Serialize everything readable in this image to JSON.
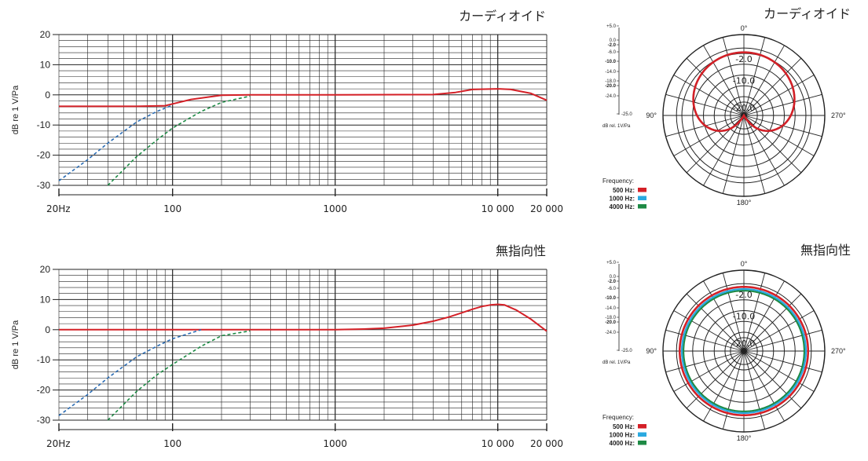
{
  "colors": {
    "series500": "#d42027",
    "series1000": "#2aa9e0",
    "series4000": "#1e8a45",
    "dashBlue": "#2b6cb3",
    "grid": "#222222"
  },
  "chart_data": [
    {
      "type": "line",
      "title": "カーディオイド",
      "ylabel": "dB re 1 V/Pa",
      "ylim": [
        -30,
        20
      ],
      "xlim": [
        20,
        20000
      ],
      "xscale": "log",
      "yticks": [
        "20",
        "10",
        "0",
        "-10",
        "-20",
        "-30"
      ],
      "xticks": [
        "20Hz",
        "100",
        "1000",
        "10 000",
        "20 000"
      ],
      "series": [
        {
          "style": "solid",
          "color": "#d42027",
          "x": [
            20,
            60,
            90,
            100,
            130,
            200,
            300,
            1000,
            4000,
            5500,
            7000,
            10000,
            12000,
            16000,
            20000
          ],
          "y": [
            -3.8,
            -3.8,
            -3.6,
            -3.0,
            -1.5,
            -0.1,
            0,
            0,
            0.1,
            0.8,
            1.8,
            2.0,
            1.8,
            0.5,
            -1.8
          ]
        },
        {
          "style": "dashed",
          "color": "#2b6cb3",
          "x": [
            20,
            30,
            40,
            60,
            80,
            100
          ],
          "y": [
            -28.5,
            -21.5,
            -16,
            -9,
            -5.5,
            -3.4
          ]
        },
        {
          "style": "dashed",
          "color": "#1e8a45",
          "x": [
            40,
            60,
            80,
            100,
            150,
            200,
            300
          ],
          "y": [
            -30,
            -20.5,
            -15,
            -11,
            -5.5,
            -2.5,
            -0.4
          ]
        }
      ]
    },
    {
      "type": "line",
      "title": "無指向性",
      "ylabel": "dB re 1 V/Pa",
      "ylim": [
        -30,
        20
      ],
      "xlim": [
        20,
        20000
      ],
      "xscale": "log",
      "yticks": [
        "20",
        "10",
        "0",
        "-10",
        "-20",
        "-30"
      ],
      "xticks": [
        "20Hz",
        "100",
        "1000",
        "10 000",
        "20 000"
      ],
      "series": [
        {
          "style": "solid",
          "color": "#d42027",
          "x": [
            20,
            100,
            1000,
            1500,
            2000,
            3000,
            4000,
            5000,
            6000,
            7000,
            8000,
            9000,
            10000,
            11000,
            13000,
            16000,
            20000
          ],
          "y": [
            0,
            0,
            0,
            0.2,
            0.5,
            1.5,
            2.8,
            4.2,
            5.6,
            6.8,
            7.7,
            8.2,
            8.4,
            8.2,
            6.5,
            3.5,
            -0.5
          ]
        },
        {
          "style": "dashed",
          "color": "#2b6cb3",
          "x": [
            20,
            30,
            40,
            60,
            80,
            100,
            150
          ],
          "y": [
            -28.5,
            -21.5,
            -16,
            -9,
            -5.5,
            -3,
            0
          ]
        },
        {
          "style": "dashed",
          "color": "#1e8a45",
          "x": [
            40,
            60,
            80,
            100,
            150,
            200,
            300
          ],
          "y": [
            -30,
            -20.5,
            -15,
            -11.5,
            -5.5,
            -2,
            -0.4
          ]
        }
      ]
    },
    {
      "type": "polar",
      "title": "カーディオイド",
      "rlim": [
        -25,
        5
      ],
      "scale_labels": [
        "+5.0",
        "0.0",
        "-2.0",
        "-6.0",
        "-10.0",
        "-14.0",
        "-18.0",
        "-20.0",
        "-24.0",
        "-25.0"
      ],
      "scale_unit": "dB rel. 1V/Pa",
      "angle_labels": [
        "0°",
        "90°",
        "270°",
        "180°"
      ],
      "ring_labels": [
        "-2.0",
        "-10.0",
        "-20.0"
      ],
      "legend_title": "Frequency:",
      "series": [
        {
          "name": "500 Hz:",
          "color": "#d42027",
          "pattern": "cardioid"
        },
        {
          "name": "1000 Hz:",
          "color": "#2aa9e0",
          "pattern": "cardioid"
        },
        {
          "name": "4000 Hz:",
          "color": "#1e8a45",
          "pattern": "cardioid"
        }
      ]
    },
    {
      "type": "polar",
      "title": "無指向性",
      "rlim": [
        -25,
        5
      ],
      "scale_labels": [
        "+5.0",
        "0.0",
        "-2.0",
        "-6.0",
        "-10.0",
        "-14.0",
        "-18.0",
        "-20.0",
        "-24.0",
        "-25.0"
      ],
      "scale_unit": "dB rel. 1V/Pa",
      "angle_labels": [
        "0°",
        "90°",
        "270°",
        "180°"
      ],
      "ring_labels": [
        "-2.0",
        "-10.0",
        "-20.0"
      ],
      "legend_title": "Frequency:",
      "series": [
        {
          "name": "500 Hz:",
          "color": "#d42027",
          "pattern": "omni",
          "level_db": -1.2
        },
        {
          "name": "1000 Hz:",
          "color": "#2aa9e0",
          "pattern": "omni",
          "level_db": -2.0
        },
        {
          "name": "4000 Hz:",
          "color": "#1e8a45",
          "pattern": "omni",
          "level_db": -2.6
        }
      ]
    }
  ]
}
